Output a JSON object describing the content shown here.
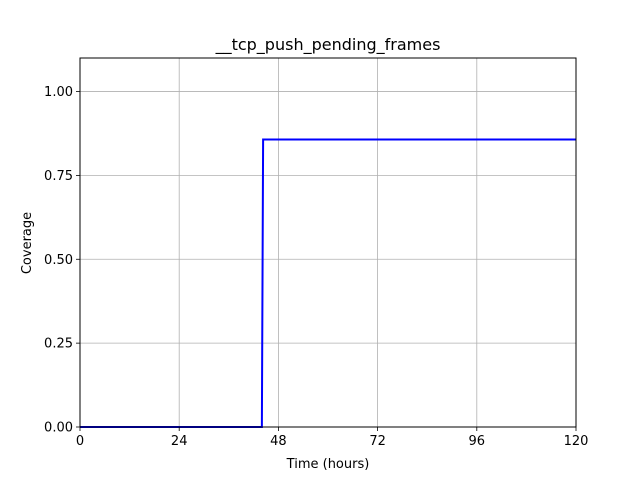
{
  "chart_data": {
    "type": "line",
    "title": "__tcp_push_pending_frames",
    "xlabel": "Time (hours)",
    "ylabel": "Coverage",
    "xlim": [
      0,
      120
    ],
    "ylim": [
      0,
      1.1
    ],
    "x_ticks": [
      0,
      24,
      48,
      72,
      96,
      120
    ],
    "y_ticks": [
      0.0,
      0.25,
      0.5,
      0.75,
      1.0
    ],
    "x_tick_labels": [
      "0",
      "24",
      "48",
      "72",
      "96",
      "120"
    ],
    "y_tick_labels": [
      "0.00",
      "0.25",
      "0.50",
      "0.75",
      "1.00"
    ],
    "grid": true,
    "series": [
      {
        "color": "#0000ff",
        "x": [
          0,
          44,
          44.3,
          120
        ],
        "y": [
          0.0,
          0.0,
          0.857,
          0.857
        ]
      }
    ]
  }
}
